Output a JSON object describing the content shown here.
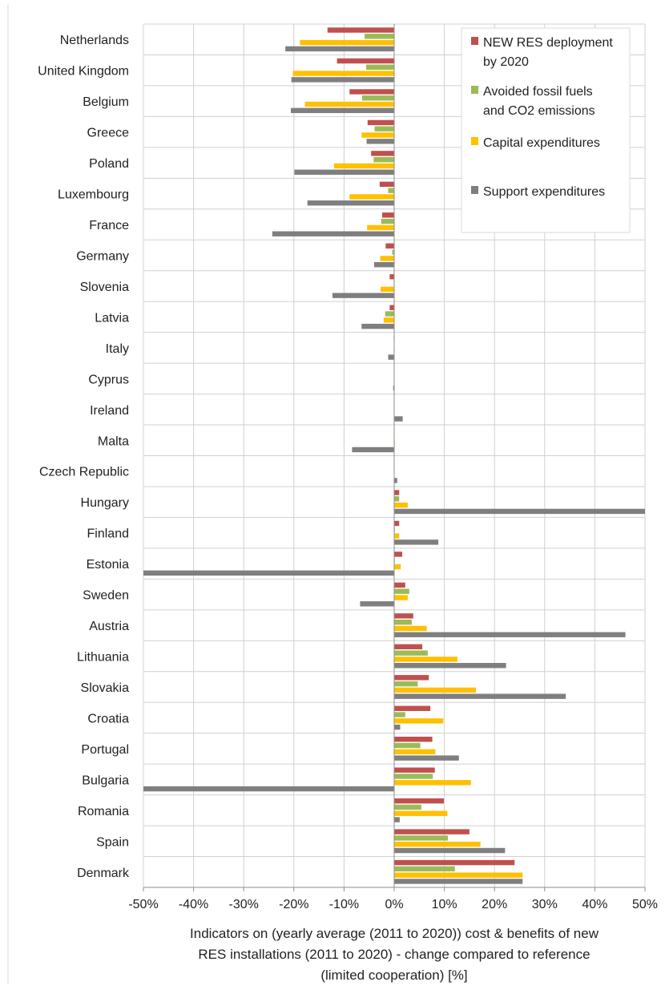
{
  "chart_data": {
    "type": "bar",
    "orientation": "horizontal",
    "categories": [
      "Netherlands",
      "United Kingdom",
      "Belgium",
      "Greece",
      "Poland",
      "Luxembourg",
      "France",
      "Germany",
      "Slovenia",
      "Latvia",
      "Italy",
      "Cyprus",
      "Ireland",
      "Malta",
      "Czech Republic",
      "Hungary",
      "Finland",
      "Estonia",
      "Sweden",
      "Austria",
      "Lithuania",
      "Slovakia",
      "Croatia",
      "Portugal",
      "Bulgaria",
      "Romania",
      "Spain",
      "Denmark"
    ],
    "series": [
      {
        "name": "NEW RES deployment by 2020",
        "color": "#c0504d",
        "values": [
          -13.3,
          -11.4,
          -8.9,
          -5.3,
          -4.6,
          -2.9,
          -2.4,
          -1.7,
          -0.9,
          -0.9,
          -0.1,
          0,
          0,
          0,
          0,
          1.0,
          1.0,
          1.6,
          2.2,
          3.8,
          5.6,
          6.9,
          7.2,
          7.6,
          8.1,
          9.9,
          15.0,
          24.0
        ]
      },
      {
        "name": "Avoided fossil fuels and CO2 emissions",
        "color": "#9bbb59",
        "values": [
          -5.9,
          -5.6,
          -6.4,
          -3.9,
          -4.1,
          -1.2,
          -2.6,
          -0.4,
          -0.1,
          -1.8,
          0,
          0,
          0,
          0,
          0,
          1.0,
          0.1,
          0.1,
          3.0,
          3.5,
          6.7,
          4.7,
          2.2,
          5.2,
          7.7,
          5.4,
          10.7,
          12.1
        ]
      },
      {
        "name": "Capital expenditures",
        "color": "#ffc000",
        "values": [
          -18.8,
          -20.2,
          -17.8,
          -6.5,
          -12.0,
          -8.9,
          -5.4,
          -2.8,
          -2.7,
          -2.1,
          -0.1,
          0,
          0,
          0.1,
          0,
          2.7,
          1.0,
          1.3,
          2.7,
          6.5,
          12.6,
          16.3,
          9.8,
          8.2,
          15.3,
          10.6,
          17.2,
          25.6
        ]
      },
      {
        "name": "Support expenditures",
        "color": "#7f7f7f",
        "values": [
          -21.7,
          -20.5,
          -20.6,
          -5.5,
          -19.9,
          -17.3,
          -24.3,
          -4.0,
          -12.3,
          -6.5,
          -1.2,
          -0.2,
          1.7,
          -8.4,
          0.6,
          50.5,
          8.8,
          -50.0,
          -6.8,
          46.1,
          22.3,
          34.2,
          1.2,
          12.9,
          -50.0,
          1.1,
          22.1,
          25.6
        ]
      }
    ],
    "xlim": [
      -50,
      50
    ],
    "xticks": [
      "-50%",
      "-40%",
      "-30%",
      "-20%",
      "-10%",
      "0%",
      "10%",
      "20%",
      "30%",
      "40%",
      "50%"
    ],
    "xlabel_lines": [
      "Indicators on (yearly average (2011 to 2020))  cost & benefits of new",
      "RES installations (2011 to 2020) - change compared to reference",
      "(limited cooperation) [%]"
    ],
    "grid": true,
    "legend_position": "top-right",
    "legend": [
      {
        "lines": [
          "NEW RES deployment",
          "by 2020"
        ],
        "color": "#c0504d"
      },
      {
        "lines": [
          "Avoided fossil fuels",
          "and CO2 emissions"
        ],
        "color": "#9bbb59"
      },
      {
        "lines": [
          "Capital expenditures"
        ],
        "color": "#ffc000"
      },
      {
        "lines": [
          "Support expenditures"
        ],
        "color": "#7f7f7f"
      }
    ]
  }
}
